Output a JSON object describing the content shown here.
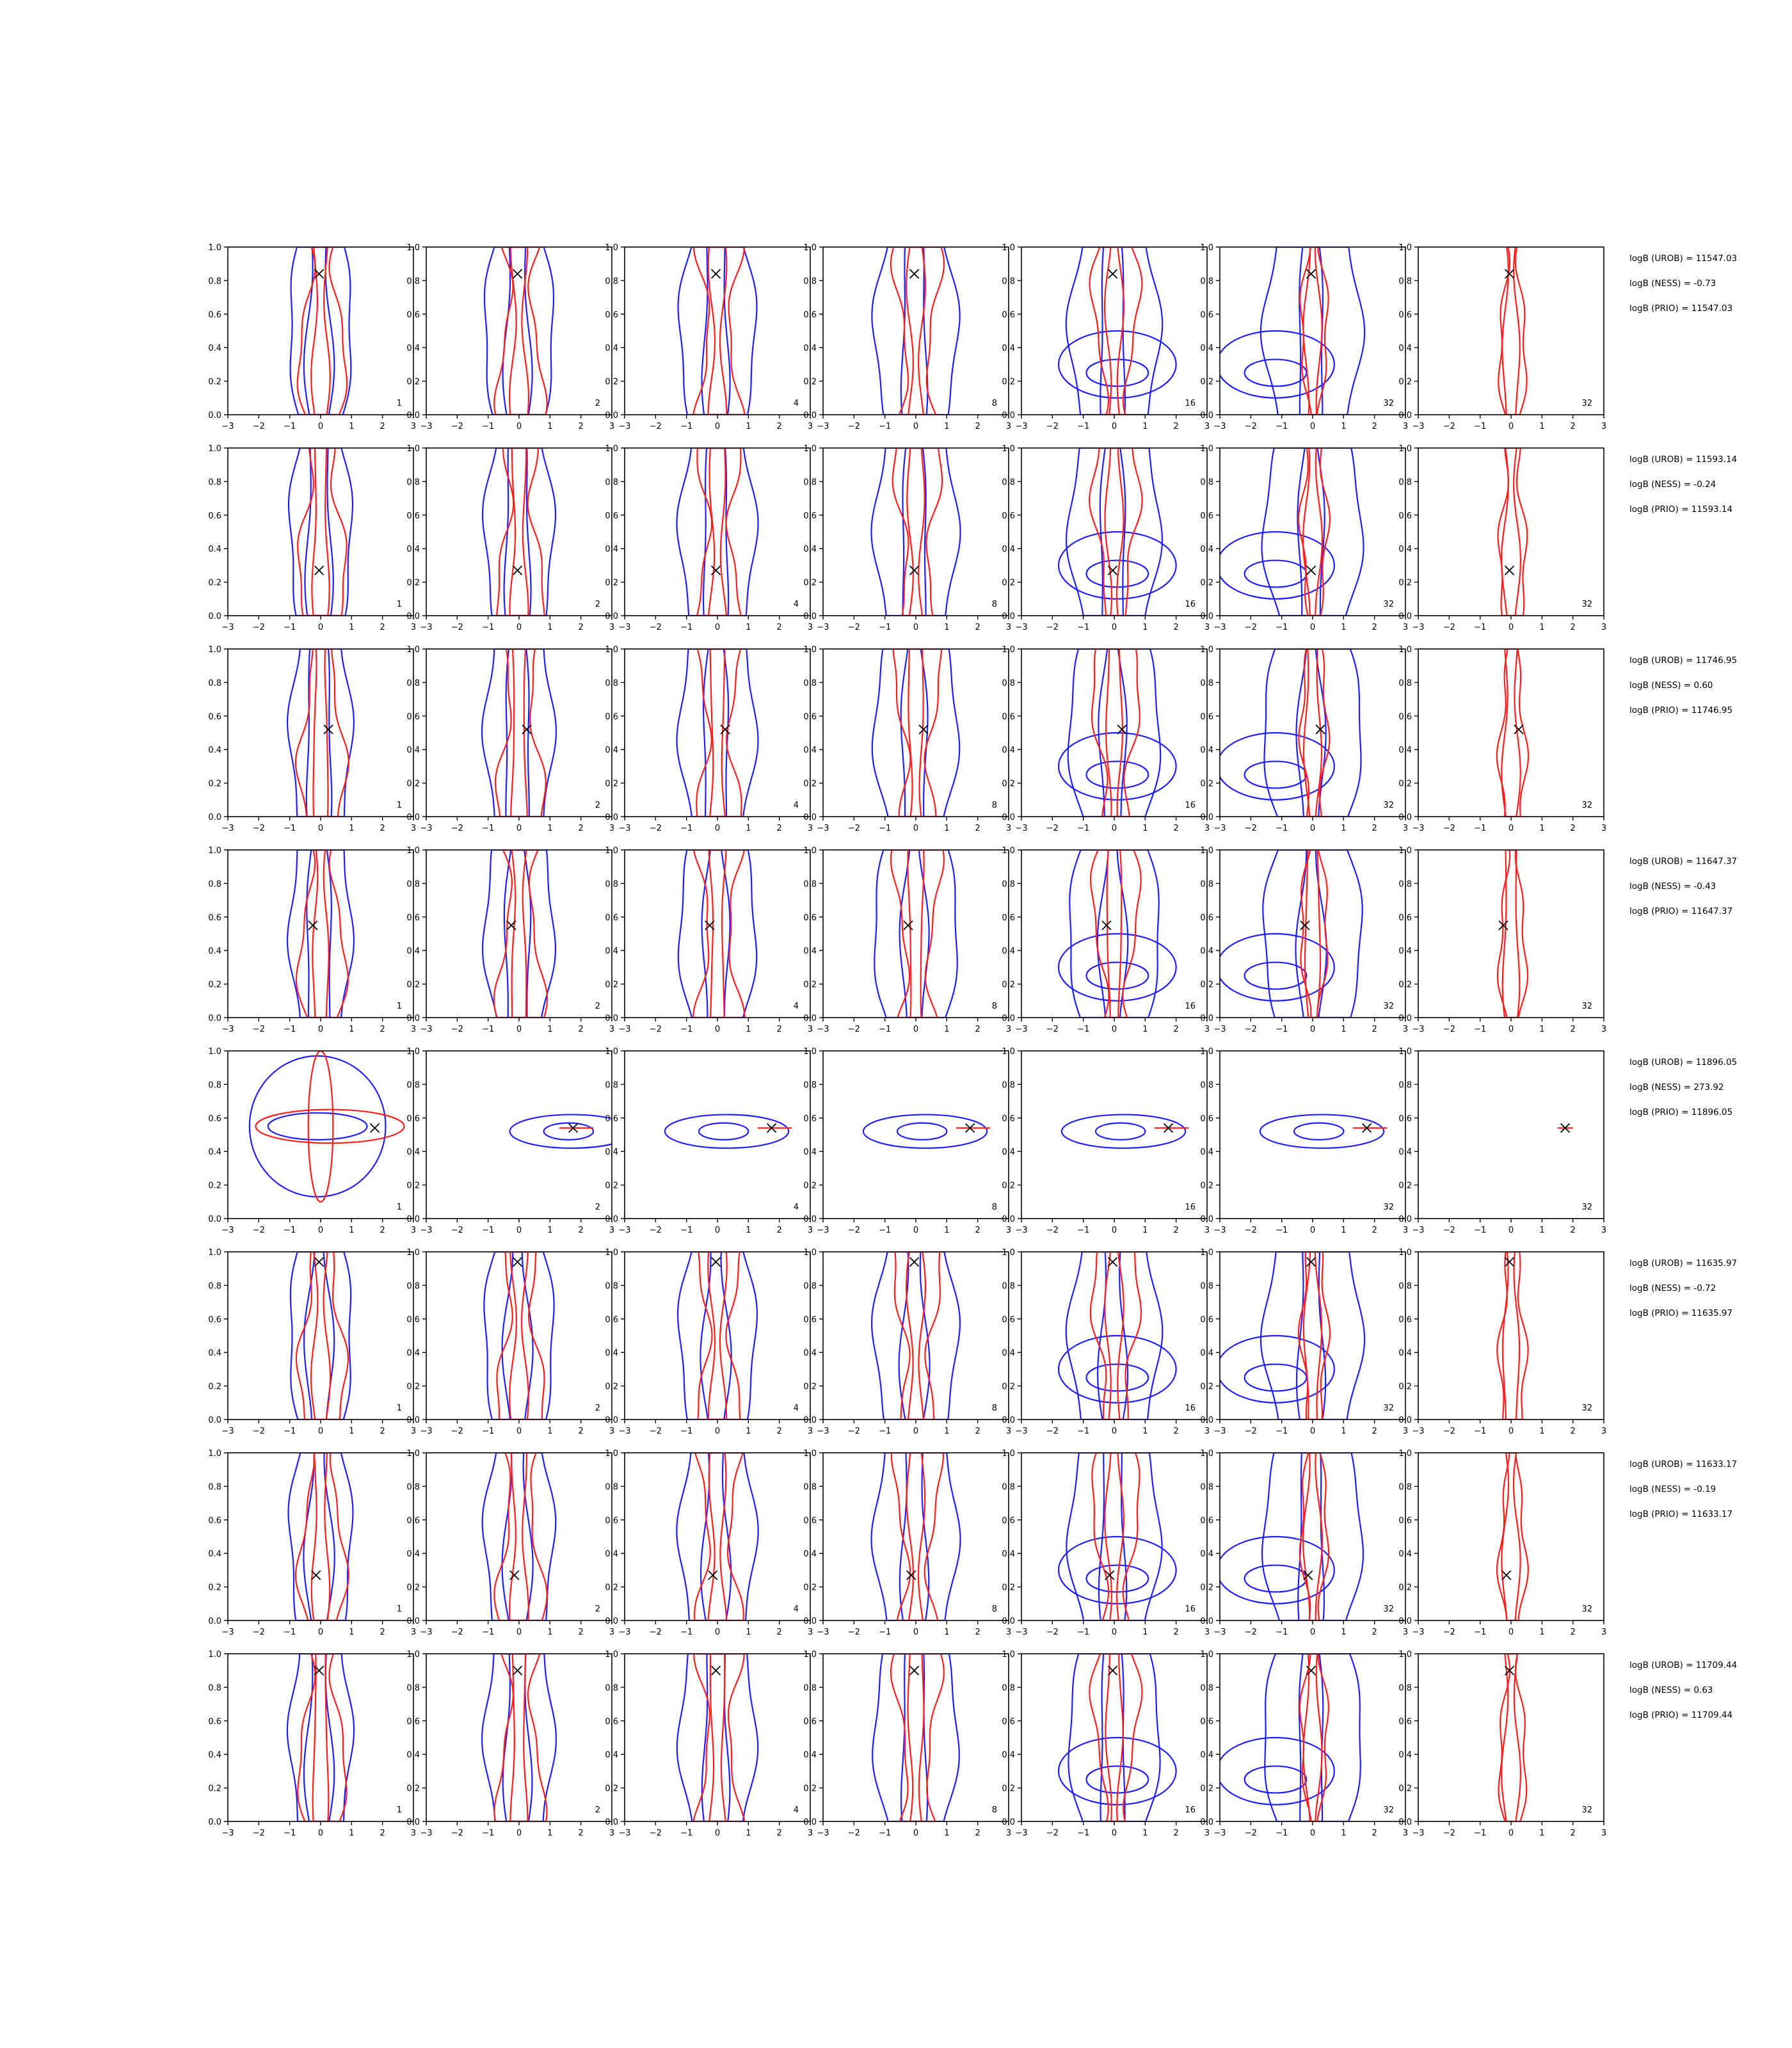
{
  "chart_data": {
    "type": "contour-grid",
    "rows": 8,
    "cols": 7,
    "xlim": [
      -3,
      3
    ],
    "ylim": [
      0,
      1
    ],
    "xticks": [
      "−3",
      "−2",
      "−1",
      "0",
      "1",
      "2",
      "3"
    ],
    "yticks": [
      "0.0",
      "0.2",
      "0.4",
      "0.6",
      "0.8",
      "1.0"
    ],
    "panel_labels": [
      "1",
      "2",
      "4",
      "8",
      "16",
      "32",
      "32"
    ],
    "colors": {
      "blue": "#1f1fff",
      "red": "#ff1f1f",
      "marker": "#000000"
    },
    "markers": [
      {
        "x": -0.05,
        "y": 0.84
      },
      {
        "x": -0.05,
        "y": 0.27
      },
      {
        "x": 0.25,
        "y": 0.52
      },
      {
        "x": -0.25,
        "y": 0.55
      },
      {
        "x": 1.75,
        "y": 0.54
      },
      {
        "x": -0.05,
        "y": 0.94
      },
      {
        "x": -0.15,
        "y": 0.27
      },
      {
        "x": -0.05,
        "y": 0.9
      }
    ],
    "annotations": [
      [
        "logB (UROB) = 11547.03",
        "logB (NESS) = -0.73",
        "logB (PRIO) = 11547.03"
      ],
      [
        "logB (UROB) = 11593.14",
        "logB (NESS) = -0.24",
        "logB (PRIO) = 11593.14"
      ],
      [
        "logB (UROB) = 11746.95",
        "logB (NESS) = 0.60",
        "logB (PRIO) = 11746.95"
      ],
      [
        "logB (UROB) = 11647.37",
        "logB (NESS) = -0.43",
        "logB (PRIO) = 11647.37"
      ],
      [
        "logB (UROB) = 11896.05",
        "logB (NESS) = 273.92",
        "logB (PRIO) = 11896.05"
      ],
      [
        "logB (UROB) = 11635.97",
        "logB (NESS) = -0.72",
        "logB (PRIO) = 11635.97"
      ],
      [
        "logB (UROB) = 11633.17",
        "logB (NESS) = -0.19",
        "logB (PRIO) = 11633.17"
      ],
      [
        "logB (UROB) = 11709.44",
        "logB (NESS) = 0.63",
        "logB (PRIO) = 11709.44"
      ]
    ],
    "contours": {
      "vertical_inner_halfwidth": 0.35,
      "vertical_outer_halfwidth": 0.8,
      "row5_horizontal": {
        "cx": 0.3,
        "cy": 0.52,
        "rx_outer": 2.0,
        "ry_outer": 0.1,
        "rx_inner": 0.8,
        "ry_inner": 0.05
      },
      "column6_horizontal": {
        "cx": -1.2,
        "cy": 0.25,
        "rx_outer": 1.9,
        "ry_outer": 0.2,
        "rx_inner": 1.0,
        "ry_inner": 0.08
      }
    }
  }
}
